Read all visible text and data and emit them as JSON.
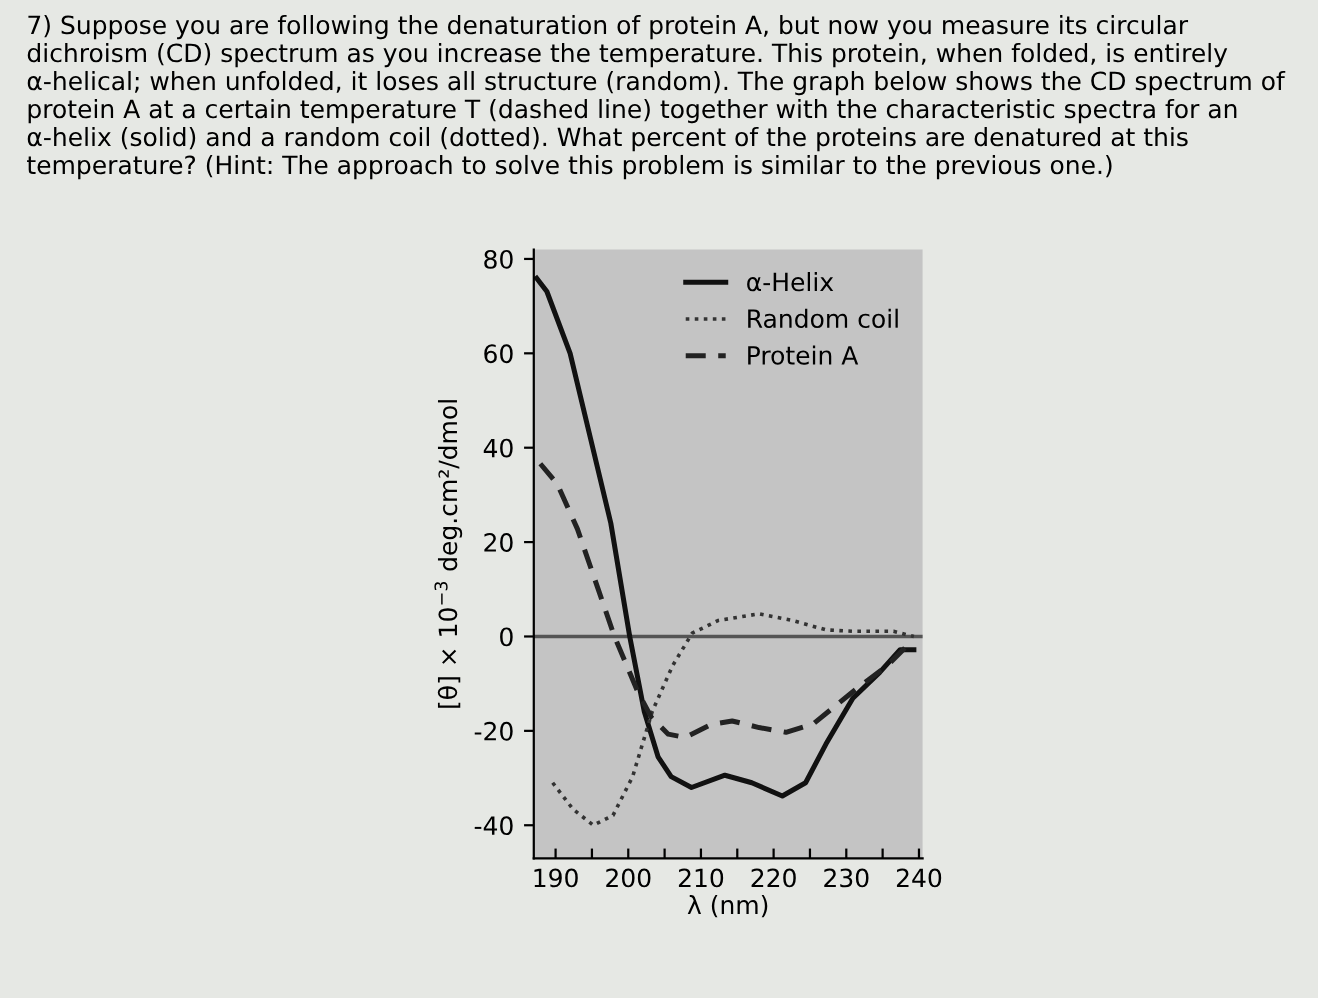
{
  "chart_data": {
    "type": "line",
    "title": "7) Suppose you are following the denaturation of protein A, but now you measure its circular dichroism (CD) spectrum as you increase the temperature. This protein, when folded, is entirely α-helical; when unfolded, it loses all structure (random). The graph below shows the CD spectrum of protein A at a certain temperature T (dashed line) together with the characteristic spectra for an α-helix (solid) and a random coil (dotted). What percent of the proteins are denatured at this temperature? (Hint: The approach to solve this problem is similar to the previous one.)",
    "xlabel": "λ (nm)",
    "ylabel": "[θ] × 10$^{−3}$ deg.cm²/dmol",
    "series": [
      {
        "name": "α-Helix",
        "color": "#111111",
        "line_style": "solid",
        "x": [
          187.4,
          188.8,
          192.0,
          194.8,
          197.6,
          200.2,
          202.2,
          204.1,
          205.9,
          208.7,
          213.3,
          217.0,
          221.2,
          224.4,
          227.2,
          230.9,
          234.6,
          237.4,
          239.3
        ],
        "values": [
          75.9,
          73.1,
          60,
          42,
          24,
          0,
          -15.9,
          -25.5,
          -29.7,
          -32,
          -29.4,
          -31,
          -33.8,
          -31,
          -22.8,
          -13.1,
          -7.6,
          -2.8,
          -2.8
        ]
      },
      {
        "name": "Random coil",
        "color": "#333333",
        "line_style": "dotted",
        "x": [
          189.6,
          192.4,
          195.2,
          197.9,
          200.6,
          203.3,
          206.1,
          208.8,
          212.4,
          218.0,
          222.6,
          227.2,
          230.9,
          236.5,
          239.3
        ],
        "values": [
          -31,
          -36.6,
          -40,
          -37.9,
          -29.7,
          -15.9,
          -6.2,
          0.7,
          3.4,
          4.8,
          3.4,
          1.4,
          1.1,
          1.1,
          0
        ]
      },
      {
        "name": "Protein A",
        "color": "#222222",
        "line_style": "dashed",
        "x": [
          187.9,
          190.2,
          193.0,
          195.8,
          198.1,
          201.3,
          203.2,
          205.5,
          207.8,
          211.5,
          214.3,
          218.0,
          221.7,
          225.4,
          230.9,
          235.6,
          238.3
        ],
        "values": [
          36.6,
          32.4,
          22.8,
          10.3,
          0,
          -11.7,
          -17.2,
          -20.7,
          -21.4,
          -18.6,
          -17.9,
          -19.3,
          -20.3,
          -18.6,
          -11.7,
          -6.2,
          -2.1
        ]
      }
    ],
    "ref_lines": [
      {
        "axis": "y",
        "value": 0,
        "color": "#555555"
      }
    ],
    "xlim": [
      187,
      240.5
    ],
    "ylim": [
      -47,
      82
    ],
    "xticks": [
      190,
      {
        "value": 195,
        "label": null
      },
      200,
      {
        "value": 205,
        "label": null
      },
      210,
      {
        "value": 215,
        "label": null
      },
      220,
      {
        "value": 225,
        "label": null
      },
      230,
      {
        "value": 235,
        "label": null
      },
      240
    ],
    "yticks": [
      -40,
      -20,
      0,
      20,
      40,
      60,
      80
    ],
    "legend": "top right",
    "grid": false,
    "marker": "none"
  }
}
